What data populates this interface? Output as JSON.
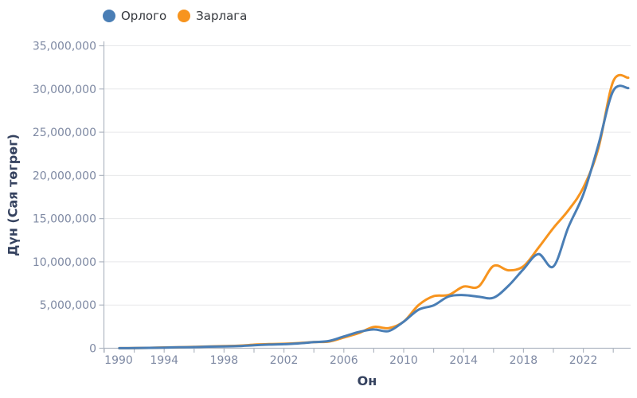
{
  "legend": {
    "items": [
      {
        "label": "Орлого",
        "color": "#4a7eb5"
      },
      {
        "label": "Зарлага",
        "color": "#f7941e"
      }
    ]
  },
  "axes": {
    "y_title": "Дүн (Сая төгрөг)",
    "x_title": "Он"
  },
  "colors": {
    "background": "#ffffff",
    "grid": "#e7e8ea",
    "axis": "#b0b7c2",
    "tick_label": "#7e89a3",
    "axis_title": "#35425f",
    "legend_text": "#35383d",
    "series_revenue": "#4a7eb5",
    "series_expenditure": "#f7941e"
  },
  "chart_data": {
    "type": "line",
    "title": "",
    "xlabel": "Он",
    "ylabel": "Дүн (Сая төгрөг)",
    "legend_position": "top",
    "grid": "horizontal",
    "xlim": [
      1990,
      2025.3
    ],
    "ylim": [
      0,
      35400000
    ],
    "x": [
      1991,
      1992,
      1993,
      1994,
      1995,
      1996,
      1997,
      1998,
      1999,
      2000,
      2001,
      2002,
      2003,
      2004,
      2005,
      2006,
      2007,
      2008,
      2009,
      2010,
      2011,
      2012,
      2013,
      2014,
      2015,
      2016,
      2017,
      2018,
      2019,
      2020,
      2021,
      2022,
      2023,
      2024,
      2025
    ],
    "series": [
      {
        "name": "Орлого",
        "color": "#4a7eb5",
        "values": [
          8000,
          19000,
          45000,
          78000,
          110000,
          135000,
          180000,
          210000,
          250000,
          350000,
          420000,
          470000,
          560000,
          710000,
          840000,
          1360000,
          1880000,
          2170000,
          1990000,
          3080000,
          4470000,
          4960000,
          5990000,
          6150000,
          5970000,
          5850000,
          7230000,
          9150000,
          10900000,
          9460000,
          14010000,
          17800000,
          23500000,
          29800000,
          30100000
        ]
      },
      {
        "name": "Зарлага",
        "color": "#f7941e",
        "values": [
          9000,
          23000,
          50000,
          88000,
          115000,
          155000,
          205000,
          250000,
          300000,
          410000,
          480000,
          520000,
          600000,
          720000,
          770000,
          1240000,
          1750000,
          2470000,
          2330000,
          3080000,
          5000000,
          6020000,
          6160000,
          7140000,
          7140000,
          9520000,
          9020000,
          9490000,
          11620000,
          13920000,
          15960000,
          18590000,
          23100000,
          30900000,
          31300000
        ]
      }
    ],
    "y_ticks": [
      0,
      5000000,
      10000000,
      15000000,
      20000000,
      25000000,
      30000000,
      35000000
    ],
    "y_tick_labels": [
      "0",
      "5,000,000",
      "10,000,000",
      "15,000,000",
      "20,000,000",
      "25,000,000",
      "30,000,000",
      "35,000,000"
    ],
    "x_label_ticks": [
      1990,
      1994,
      1998,
      2002,
      2006,
      2010,
      2014,
      2018,
      2022
    ],
    "x_tick_labels": [
      "1990",
      "1994",
      "1998",
      "2002",
      "2006",
      "2010",
      "2014",
      "2018",
      "2022"
    ],
    "x_minor_ticks": [
      1990,
      1992,
      1994,
      1996,
      1998,
      2000,
      2002,
      2004,
      2006,
      2008,
      2010,
      2012,
      2014,
      2016,
      2018,
      2020,
      2022,
      2024
    ]
  }
}
